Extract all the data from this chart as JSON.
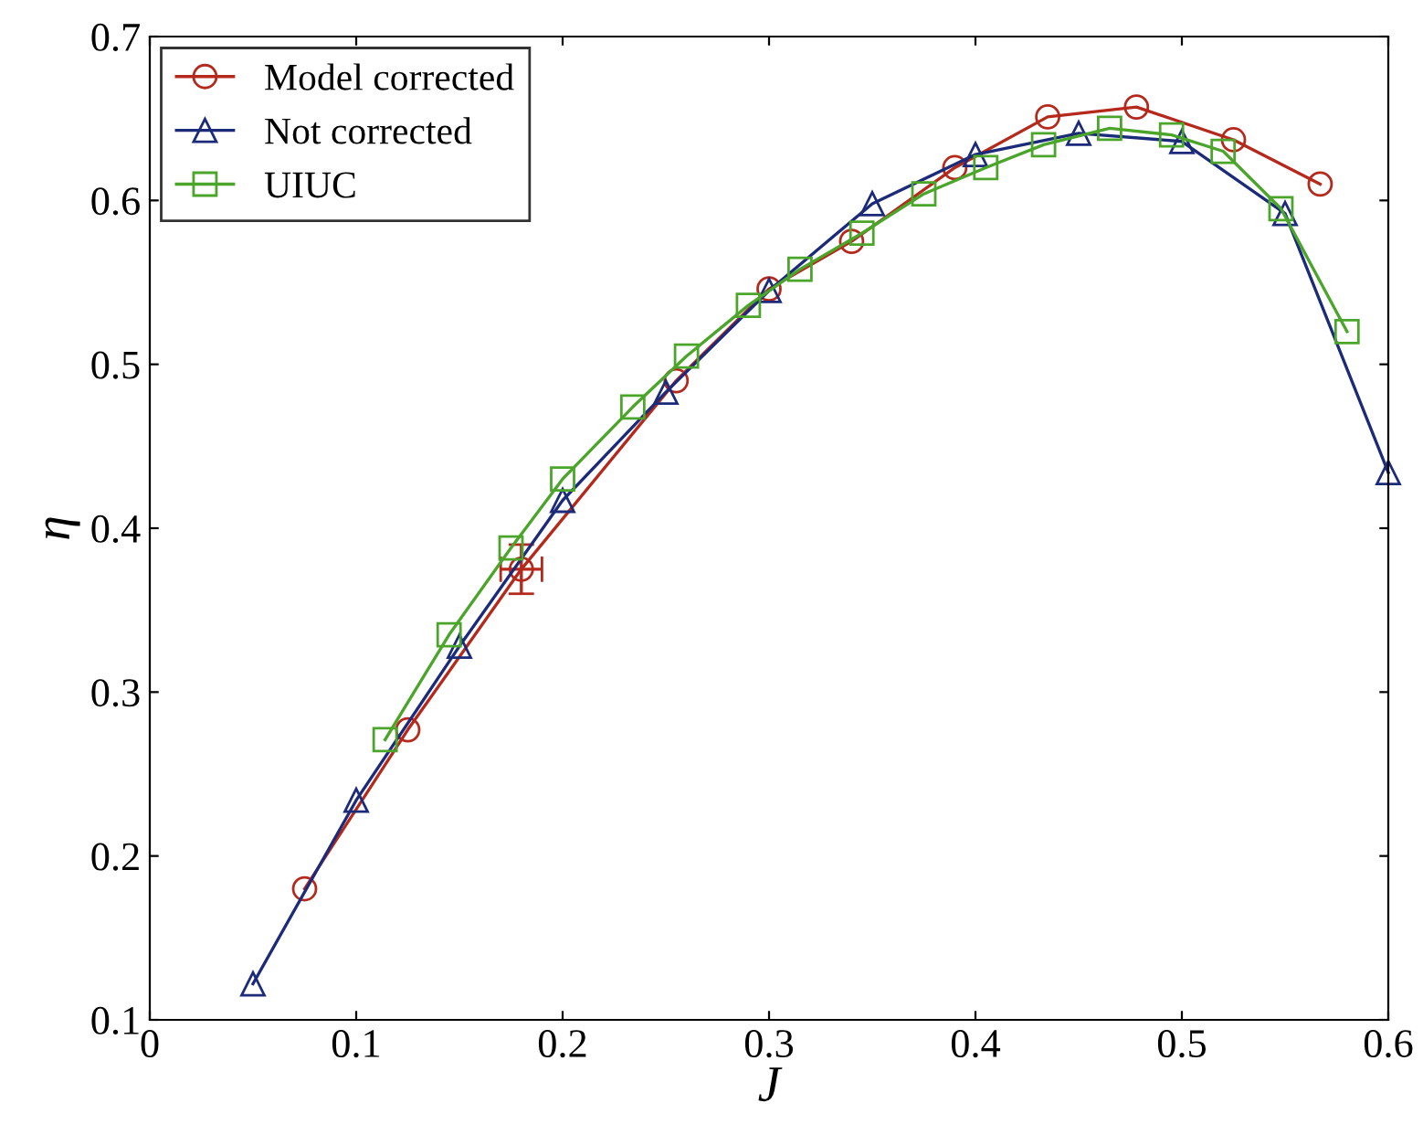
{
  "chart_data": {
    "type": "line",
    "xlabel": "J",
    "ylabel": "η",
    "xlim": [
      0,
      0.6
    ],
    "xticks": [
      0,
      0.1,
      0.2,
      0.3,
      0.4,
      0.5,
      0.6
    ],
    "ylim": [
      0.1,
      0.7
    ],
    "yticks": [
      0.1,
      0.2,
      0.3,
      0.4,
      0.5,
      0.6,
      0.7
    ],
    "grid": false,
    "legend": "top left",
    "series": [
      {
        "name": "Model corrected",
        "color": "#b5291c",
        "marker": "circle",
        "x": [
          0.075,
          0.125,
          0.18,
          0.255,
          0.3,
          0.34,
          0.39,
          0.435,
          0.478,
          0.525,
          0.567
        ],
        "values": [
          0.18,
          0.277,
          0.375,
          0.49,
          0.546,
          0.575,
          0.62,
          0.651,
          0.657,
          0.637,
          0.61
        ],
        "errors": [
          null,
          null,
          0.015,
          null,
          null,
          null,
          null,
          null,
          null,
          null,
          null
        ],
        "xerrors": [
          null,
          null,
          0.01,
          null,
          null,
          null,
          null,
          null,
          null,
          null,
          null
        ]
      },
      {
        "name": "Not corrected",
        "color": "#1c2a7a",
        "marker": "triangle",
        "x": [
          0.05,
          0.1,
          0.15,
          0.2,
          0.25,
          0.3,
          0.35,
          0.4,
          0.45,
          0.5,
          0.55,
          0.6
        ],
        "values": [
          0.122,
          0.234,
          0.328,
          0.417,
          0.483,
          0.545,
          0.598,
          0.628,
          0.641,
          0.636,
          0.592,
          0.434
        ]
      },
      {
        "name": "UIUC",
        "color": "#4aa52a",
        "marker": "square",
        "x": [
          0.114,
          0.145,
          0.175,
          0.2,
          0.234,
          0.26,
          0.29,
          0.315,
          0.345,
          0.375,
          0.405,
          0.433,
          0.465,
          0.495,
          0.52,
          0.548,
          0.58
        ],
        "values": [
          0.271,
          0.335,
          0.388,
          0.43,
          0.474,
          0.505,
          0.536,
          0.558,
          0.58,
          0.604,
          0.62,
          0.634,
          0.644,
          0.64,
          0.63,
          0.595,
          0.52
        ]
      }
    ]
  }
}
